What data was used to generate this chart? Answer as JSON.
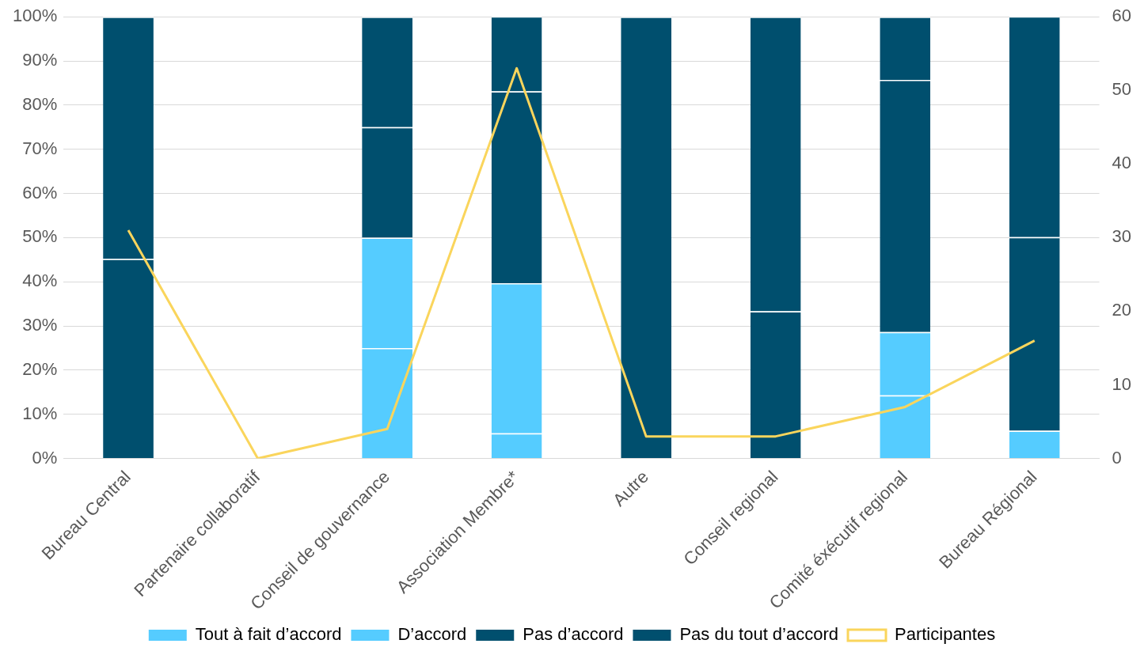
{
  "chart_data": {
    "type": "bar",
    "stacked": true,
    "categories": [
      "Bureau Central",
      "Partenaire collaboratif",
      "Conseil de gouvernance",
      "Association Membre*",
      "Autre",
      "Conseil regional",
      "Comité éxécutif regional",
      "Bureau Régional"
    ],
    "series": [
      {
        "name": "Tout à fait d’accord",
        "color": "#55ccff",
        "values": [
          0,
          0,
          25,
          5.7,
          0,
          0,
          14.3,
          6.3
        ]
      },
      {
        "name": "D’accord",
        "color": "#55ccff",
        "values": [
          0,
          0,
          25,
          34,
          0,
          0,
          14.3,
          0
        ]
      },
      {
        "name": "Pas d’accord",
        "color": "#004f6e",
        "values": [
          45.2,
          0,
          25,
          43.4,
          100,
          33.3,
          57.1,
          43.8
        ]
      },
      {
        "name": "Pas du tout d’accord",
        "color": "#004f6e",
        "values": [
          54.8,
          0,
          25,
          17,
          0,
          66.7,
          14.3,
          50
        ]
      },
      {
        "name": "Participantes",
        "type": "line",
        "axis": "y2",
        "color": "#fad55c",
        "marker": "none",
        "values": [
          31,
          0,
          4,
          53,
          3,
          3,
          7,
          16
        ]
      }
    ],
    "ylim": [
      0,
      100
    ],
    "yticks": [
      {
        "value": 0,
        "label": "0%"
      },
      {
        "value": 10,
        "label": "10%"
      },
      {
        "value": 20,
        "label": "20%"
      },
      {
        "value": 30,
        "label": "30%"
      },
      {
        "value": 40,
        "label": "40%"
      },
      {
        "value": 50,
        "label": "50%"
      },
      {
        "value": 60,
        "label": "60%"
      },
      {
        "value": 70,
        "label": "70%"
      },
      {
        "value": 80,
        "label": "80%"
      },
      {
        "value": 90,
        "label": "90%"
      },
      {
        "value": 100,
        "label": "100%"
      }
    ],
    "y2lim": [
      0,
      60
    ],
    "y2ticks": [
      0,
      10,
      20,
      30,
      40,
      50,
      60
    ],
    "grid": "y",
    "legend": "bottom"
  }
}
